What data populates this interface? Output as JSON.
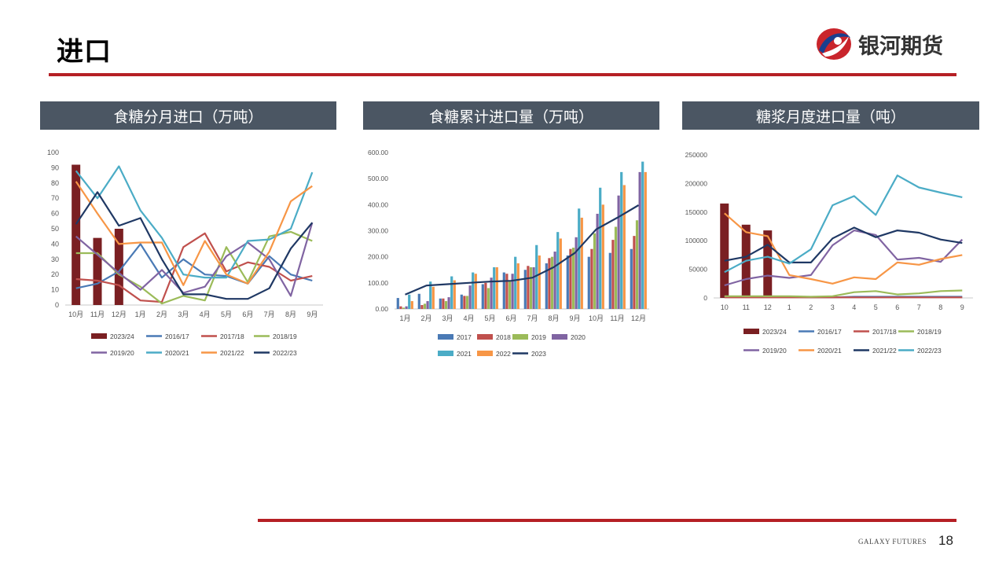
{
  "page": {
    "title": "进口",
    "logo_text": "银河期货",
    "footer_brand": "GALAXY FUTURES",
    "page_number": "18"
  },
  "colors": {
    "accent_red": "#b51f24",
    "header_bg": "#4b5663",
    "logo_blue": "#1a3f8f",
    "logo_red": "#c9252c"
  },
  "charts": {
    "monthly": {
      "header": "食糖分月进口（万吨）"
    },
    "cumulative": {
      "header": "食糖累计进口量（万吨）"
    },
    "syrup": {
      "header": "糖浆月度进口量（吨）"
    }
  },
  "chart_data": [
    {
      "id": "monthly",
      "type": "bar+line",
      "ylim": [
        0,
        100
      ],
      "yticks": [
        "0",
        "10",
        "20",
        "30",
        "40",
        "50",
        "60",
        "70",
        "80",
        "90",
        "100"
      ],
      "categories": [
        "10月",
        "11月",
        "12月",
        "1月",
        "2月",
        "3月",
        "4月",
        "5月",
        "6月",
        "7月",
        "8月",
        "9月"
      ],
      "bar_series": [
        {
          "name": "2023/24",
          "color": "#7a1f22",
          "values": [
            92,
            44,
            50,
            null,
            null,
            null,
            null,
            null,
            null,
            null,
            null,
            null
          ]
        }
      ],
      "line_series": [
        {
          "name": "2016/17",
          "color": "#4a7ab5",
          "values": [
            11,
            14,
            22,
            40,
            18,
            30,
            20,
            19,
            14,
            32,
            20,
            16
          ]
        },
        {
          "name": "2017/18",
          "color": "#c0504d",
          "values": [
            17,
            16,
            13,
            3,
            2,
            38,
            47,
            22,
            28,
            25,
            16,
            19
          ]
        },
        {
          "name": "2018/19",
          "color": "#9bbb59",
          "values": [
            34,
            34,
            20,
            12,
            1,
            6,
            3,
            38,
            15,
            45,
            48,
            42
          ]
        },
        {
          "name": "2019/20",
          "color": "#8064a2",
          "values": [
            45,
            33,
            21,
            10,
            23,
            8,
            12,
            32,
            41,
            30,
            6,
            54
          ]
        },
        {
          "name": "2020/21",
          "color": "#4bacc6",
          "values": [
            88,
            70,
            91,
            62,
            44,
            20,
            18,
            18,
            42,
            43,
            50,
            87
          ]
        },
        {
          "name": "2021/22",
          "color": "#f79646",
          "values": [
            81,
            60,
            40,
            41,
            41,
            13,
            42,
            20,
            14,
            35,
            68,
            78
          ]
        },
        {
          "name": "2022/23",
          "color": "#1f3864",
          "values": [
            53,
            74,
            52,
            57,
            30,
            7,
            7,
            4,
            4,
            11,
            37,
            54
          ]
        }
      ]
    },
    {
      "id": "cumulative",
      "type": "bar+line",
      "ylim": [
        0,
        600
      ],
      "yticks": [
        "0.00",
        "100.00",
        "200.00",
        "300.00",
        "400.00",
        "500.00",
        "600.00"
      ],
      "categories": [
        "1月",
        "2月",
        "3月",
        "4月",
        "5月",
        "6月",
        "7月",
        "8月",
        "9月",
        "10月",
        "11月",
        "12月"
      ],
      "bar_series": [
        {
          "name": "2017",
          "color": "#4a7ab5",
          "values": [
            42,
            58,
            40,
            55,
            95,
            140,
            150,
            175,
            205,
            200,
            215,
            230
          ]
        },
        {
          "name": "2018",
          "color": "#c0504d",
          "values": [
            10,
            15,
            40,
            50,
            100,
            135,
            165,
            195,
            230,
            230,
            265,
            280
          ]
        },
        {
          "name": "2019",
          "color": "#9bbb59",
          "values": [
            5,
            20,
            30,
            50,
            80,
            110,
            160,
            200,
            235,
            290,
            315,
            340
          ]
        },
        {
          "name": "2020",
          "color": "#8064a2",
          "values": [
            10,
            30,
            45,
            90,
            120,
            135,
            160,
            220,
            275,
            365,
            435,
            525
          ]
        },
        {
          "name": "2021",
          "color": "#4bacc6",
          "values": [
            55,
            105,
            125,
            140,
            160,
            200,
            245,
            295,
            385,
            465,
            525,
            565
          ]
        },
        {
          "name": "2022",
          "color": "#f79646",
          "values": [
            30,
            85,
            110,
            135,
            160,
            175,
            205,
            270,
            350,
            400,
            475,
            525
          ]
        }
      ],
      "line_series": [
        {
          "name": "2023",
          "color": "#1f3864",
          "values": [
            55,
            90,
            95,
            100,
            105,
            108,
            120,
            160,
            215,
            305,
            350,
            398
          ]
        }
      ]
    },
    {
      "id": "syrup",
      "type": "bar+line",
      "ylim": [
        0,
        250000
      ],
      "yticks": [
        "0",
        "50000",
        "100000",
        "150000",
        "200000",
        "250000"
      ],
      "categories": [
        "10",
        "11",
        "12",
        "1",
        "2",
        "3",
        "4",
        "5",
        "6",
        "7",
        "8",
        "9"
      ],
      "bar_series": [
        {
          "name": "2023/24",
          "color": "#7a1f22",
          "values": [
            165000,
            128000,
            118000,
            null,
            null,
            null,
            null,
            null,
            null,
            null,
            null,
            null
          ]
        }
      ],
      "line_series": [
        {
          "name": "2016/17",
          "color": "#4a7ab5",
          "values": [
            2000,
            2000,
            2000,
            2000,
            1000,
            1000,
            2000,
            2000,
            2000,
            2000,
            2000,
            2000
          ]
        },
        {
          "name": "2017/18",
          "color": "#c0504d",
          "values": [
            1000,
            1000,
            1000,
            1000,
            1000,
            1000,
            1000,
            1000,
            1000,
            1000,
            1000,
            1000
          ]
        },
        {
          "name": "2018/19",
          "color": "#9bbb59",
          "values": [
            3000,
            3000,
            3000,
            3000,
            2000,
            3000,
            10000,
            12000,
            6000,
            8000,
            12000,
            13000
          ]
        },
        {
          "name": "2019/20",
          "color": "#8064a2",
          "values": [
            22000,
            33000,
            39000,
            35000,
            40000,
            92000,
            118000,
            110000,
            67000,
            70000,
            63000,
            102000
          ]
        },
        {
          "name": "2020/21",
          "color": "#f79646",
          "values": [
            148000,
            115000,
            108000,
            40000,
            33000,
            25000,
            36000,
            33000,
            62000,
            58000,
            68000,
            75000
          ]
        },
        {
          "name": "2021/22",
          "color": "#1f3864",
          "values": [
            65000,
            72000,
            93000,
            62000,
            62000,
            104000,
            123000,
            106000,
            118000,
            114000,
            102000,
            96000
          ]
        },
        {
          "name": "2022/23",
          "color": "#4bacc6",
          "values": [
            45000,
            65000,
            72000,
            60000,
            85000,
            162000,
            178000,
            145000,
            214000,
            193000,
            184000,
            176000
          ]
        }
      ]
    }
  ]
}
